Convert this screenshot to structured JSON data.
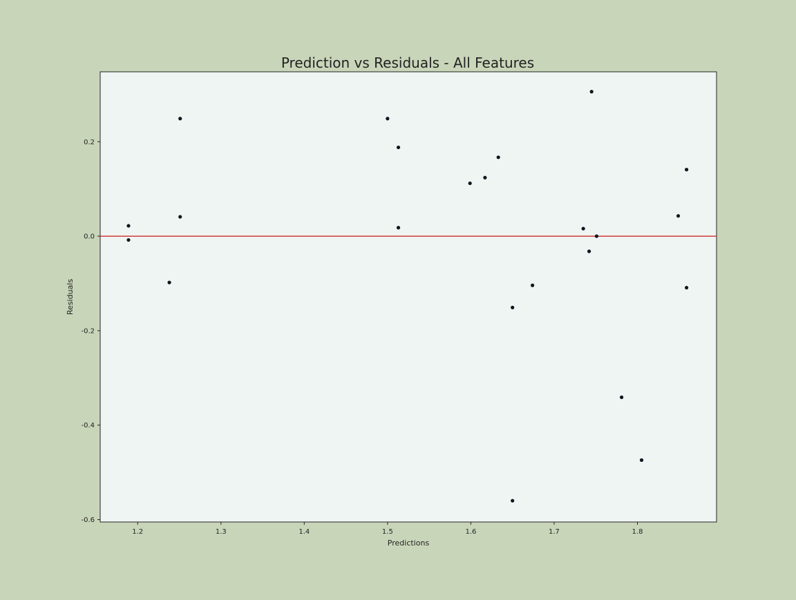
{
  "chart_data": {
    "type": "scatter",
    "title": "Prediction vs Residuals - All Features",
    "xlabel": "Predictions",
    "ylabel": "Residuals",
    "xlim": [
      1.155,
      1.895
    ],
    "ylim": [
      -0.605,
      0.348
    ],
    "x_ticks": [
      1.2,
      1.3,
      1.4,
      1.5,
      1.6,
      1.7,
      1.8
    ],
    "x_tick_labels": [
      "1.2",
      "1.3",
      "1.4",
      "1.5",
      "1.6",
      "1.7",
      "1.8"
    ],
    "y_ticks": [
      0.2,
      0.0,
      -0.2,
      -0.4,
      -0.6
    ],
    "y_tick_labels": [
      "0.2",
      "0.0",
      "-0.2",
      "-0.4",
      "-0.6"
    ],
    "grid": false,
    "reference_line": {
      "y": 0.0,
      "color": "#d03a3a"
    },
    "colors": {
      "background": "#c9d5b9",
      "plot_background": "#eff5f2",
      "point": "#14141f",
      "axis": "#222222"
    },
    "points": [
      {
        "x": 1.189,
        "y": 0.022
      },
      {
        "x": 1.189,
        "y": -0.008
      },
      {
        "x": 1.238,
        "y": -0.098
      },
      {
        "x": 1.251,
        "y": 0.249
      },
      {
        "x": 1.251,
        "y": 0.041
      },
      {
        "x": 1.5,
        "y": 0.249
      },
      {
        "x": 1.513,
        "y": 0.188
      },
      {
        "x": 1.513,
        "y": 0.018
      },
      {
        "x": 1.599,
        "y": 0.112
      },
      {
        "x": 1.617,
        "y": 0.124
      },
      {
        "x": 1.633,
        "y": 0.167
      },
      {
        "x": 1.65,
        "y": -0.151
      },
      {
        "x": 1.65,
        "y": -0.56
      },
      {
        "x": 1.674,
        "y": -0.104
      },
      {
        "x": 1.735,
        "y": 0.016
      },
      {
        "x": 1.742,
        "y": -0.032
      },
      {
        "x": 1.745,
        "y": 0.306
      },
      {
        "x": 1.751,
        "y": 0.0
      },
      {
        "x": 1.781,
        "y": -0.341
      },
      {
        "x": 1.805,
        "y": -0.474
      },
      {
        "x": 1.849,
        "y": 0.043
      },
      {
        "x": 1.859,
        "y": 0.141
      },
      {
        "x": 1.859,
        "y": -0.109
      }
    ]
  }
}
